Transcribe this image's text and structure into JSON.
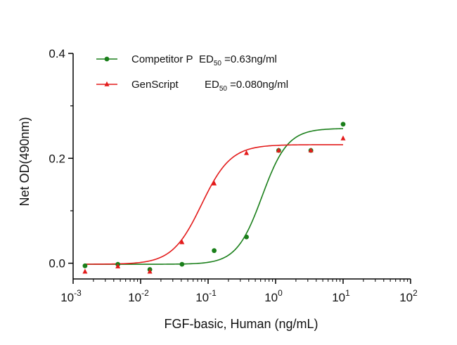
{
  "chart_data": {
    "type": "scatter",
    "title": "",
    "xlabel": "FGF-basic, Human (ng/mL)",
    "ylabel": "Net OD(490nm)",
    "xscale": "log",
    "xlim": [
      0.001,
      100
    ],
    "ylim": [
      -0.03,
      0.4
    ],
    "x_ticks": [
      {
        "value": 0.001,
        "base": "10",
        "exp": "-3"
      },
      {
        "value": 0.01,
        "base": "10",
        "exp": "-2"
      },
      {
        "value": 0.1,
        "base": "10",
        "exp": "-1"
      },
      {
        "value": 1,
        "base": "10",
        "exp": "0"
      },
      {
        "value": 10,
        "base": "10",
        "exp": "1"
      },
      {
        "value": 100,
        "base": "10",
        "exp": "2"
      }
    ],
    "y_ticks": [
      {
        "value": 0.0,
        "label": "0.0"
      },
      {
        "value": 0.2,
        "label": "0.2"
      },
      {
        "value": 0.4,
        "label": "0.4"
      }
    ],
    "grid": false,
    "legend_position": "top-left",
    "series": [
      {
        "name": "Competitor P",
        "ed50_text": "ED",
        "ed50_sub": "50",
        "ed50_value": " =0.63ng/ml",
        "color": "#1a7f1a",
        "marker": "circle",
        "points": [
          {
            "x": 0.0015,
            "y": -0.005
          },
          {
            "x": 0.0046,
            "y": -0.002
          },
          {
            "x": 0.0137,
            "y": -0.012
          },
          {
            "x": 0.041,
            "y": -0.002
          },
          {
            "x": 0.123,
            "y": 0.024
          },
          {
            "x": 0.37,
            "y": 0.05
          },
          {
            "x": 1.11,
            "y": 0.215
          },
          {
            "x": 3.33,
            "y": 0.215
          },
          {
            "x": 10,
            "y": 0.265
          }
        ],
        "fit": {
          "bottom": -0.002,
          "top": 0.257,
          "ec50": 0.63,
          "hill": 2.3
        }
      },
      {
        "name": "GenScript",
        "ed50_text": "ED",
        "ed50_sub": "50",
        "ed50_value": " =0.080ng/ml",
        "color": "#e31b1b",
        "marker": "triangle",
        "points": [
          {
            "x": 0.0015,
            "y": -0.016
          },
          {
            "x": 0.0046,
            "y": -0.006
          },
          {
            "x": 0.0137,
            "y": -0.016
          },
          {
            "x": 0.041,
            "y": 0.04
          },
          {
            "x": 0.123,
            "y": 0.152
          },
          {
            "x": 0.37,
            "y": 0.21
          },
          {
            "x": 1.11,
            "y": 0.215
          },
          {
            "x": 3.33,
            "y": 0.215
          },
          {
            "x": 10,
            "y": 0.238
          }
        ],
        "fit": {
          "bottom": -0.002,
          "top": 0.226,
          "ec50": 0.08,
          "hill": 2.0
        }
      }
    ]
  }
}
